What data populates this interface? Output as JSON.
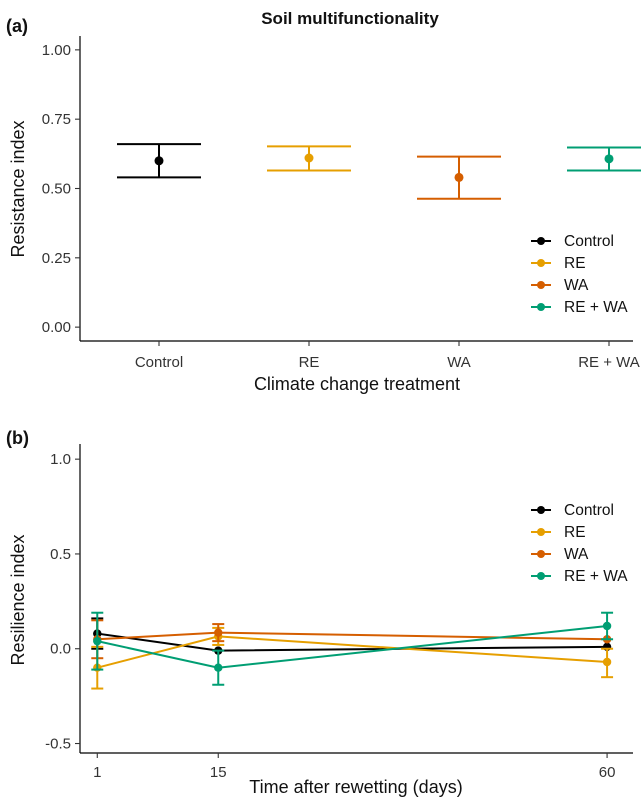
{
  "title": "Soil multifunctionality",
  "colors": {
    "Control": "#000000",
    "RE": "#E69F00",
    "WA": "#D55E00",
    "RE + WA": "#009E73"
  },
  "chart_data": [
    {
      "panel_label": "(a)",
      "type": "scatter",
      "xlabel": "Climate change treatment",
      "ylabel": "Resistance index",
      "ylim": [
        -0.05,
        1.05
      ],
      "yticks": [
        "0.00",
        "0.25",
        "0.50",
        "0.75",
        "1.00"
      ],
      "ytick_values": [
        0,
        0.25,
        0.5,
        0.75,
        1.0
      ],
      "categories": [
        "Control",
        "RE",
        "WA",
        "RE + WA"
      ],
      "legend_position": "right",
      "series": [
        {
          "name": "Control",
          "mean": 0.6,
          "lower": 0.54,
          "upper": 0.66
        },
        {
          "name": "RE",
          "mean": 0.61,
          "lower": 0.565,
          "upper": 0.652
        },
        {
          "name": "WA",
          "mean": 0.54,
          "lower": 0.463,
          "upper": 0.615
        },
        {
          "name": "RE + WA",
          "mean": 0.607,
          "lower": 0.565,
          "upper": 0.648
        }
      ],
      "legend": [
        "Control",
        "RE",
        "WA",
        "RE + WA"
      ]
    },
    {
      "panel_label": "(b)",
      "type": "line",
      "xlabel": "Time after rewetting (days)",
      "ylabel": "Resilience index",
      "ylim": [
        -0.55,
        1.08
      ],
      "yticks": [
        "-0.5",
        "0.0",
        "0.5",
        "1.0"
      ],
      "ytick_values": [
        -0.5,
        0,
        0.5,
        1.0
      ],
      "xlim": [
        -1,
        63
      ],
      "x": [
        1,
        15,
        60
      ],
      "xticks": [
        "1",
        "15",
        "60"
      ],
      "legend_position": "top-right",
      "series": [
        {
          "name": "Control",
          "values": [
            0.08,
            -0.01,
            0.01
          ],
          "lower": [
            0.0,
            -0.01,
            0.01
          ],
          "upper": [
            0.16,
            -0.01,
            0.01
          ]
        },
        {
          "name": "RE",
          "values": [
            -0.1,
            0.065,
            -0.07
          ],
          "lower": [
            -0.21,
            0.02,
            -0.15
          ],
          "upper": [
            0.01,
            0.11,
            0.0
          ]
        },
        {
          "name": "WA",
          "values": [
            0.05,
            0.085,
            0.05
          ],
          "lower": [
            -0.05,
            0.04,
            0.05
          ],
          "upper": [
            0.15,
            0.13,
            0.05
          ]
        },
        {
          "name": "RE + WA",
          "values": [
            0.04,
            -0.1,
            0.12
          ],
          "lower": [
            -0.11,
            -0.19,
            0.05
          ],
          "upper": [
            0.19,
            -0.01,
            0.19
          ]
        }
      ],
      "legend": [
        "Control",
        "RE",
        "WA",
        "RE + WA"
      ]
    }
  ]
}
